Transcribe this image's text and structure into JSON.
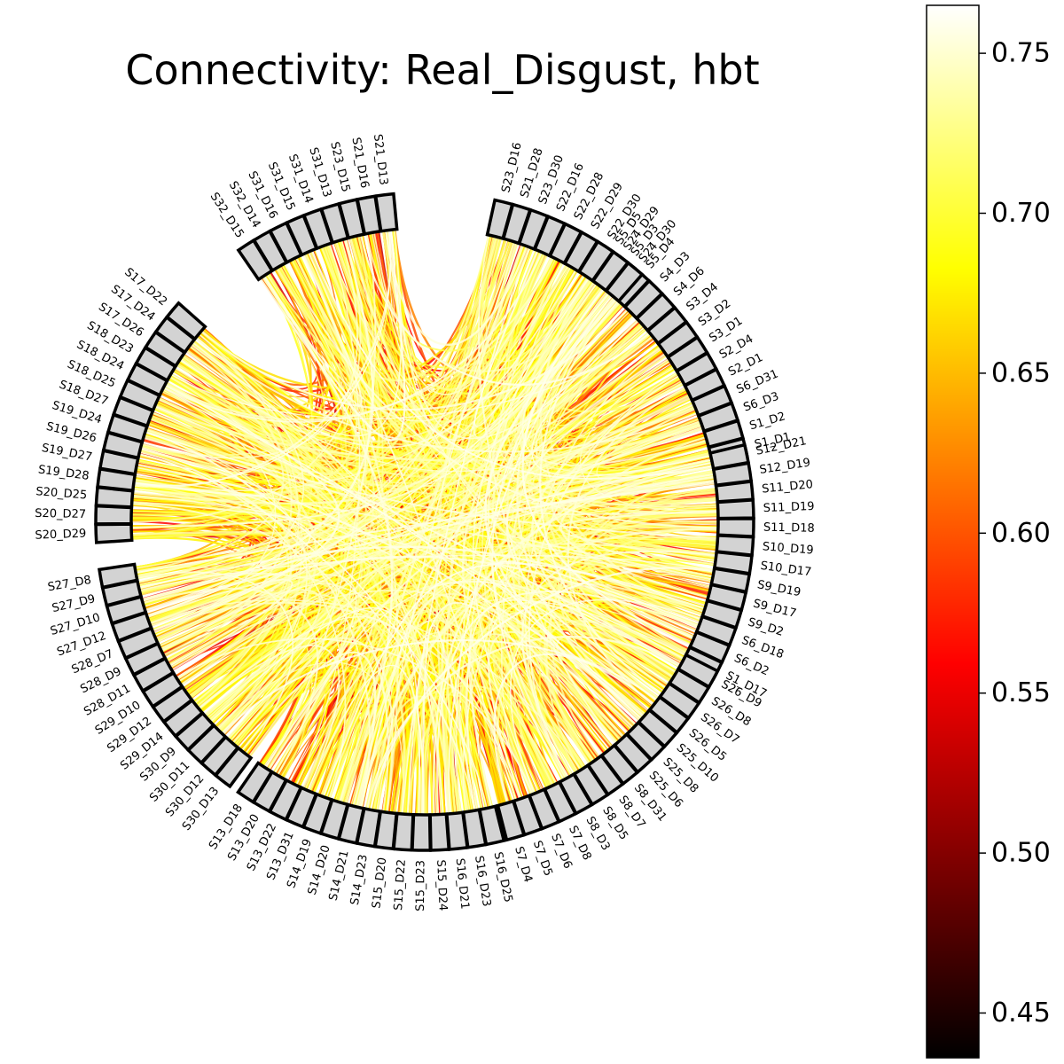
{
  "title": "Connectivity: Real_Disgust, hbt",
  "groups": [
    {
      "name": "g1",
      "nodes": [
        "S1_D1",
        "S1_D2",
        "S6_D3",
        "S6_D31",
        "S2_D1",
        "S2_D4",
        "S3_D1",
        "S3_D2",
        "S3_D4",
        "S4_D6",
        "S4_D3",
        "S5_D4",
        "S5_D3",
        "S5_D5"
      ]
    },
    {
      "name": "g2",
      "nodes": [
        "S1_D17",
        "S6_D2",
        "S6_D18",
        "S9_D2",
        "S9_D17",
        "S9_D19",
        "S10_D17",
        "S10_D19",
        "S11_D18",
        "S11_D19",
        "S11_D20",
        "S12_D19",
        "S12_D21"
      ]
    },
    {
      "name": "g3",
      "nodes": [
        "S7_D4",
        "S7_D5",
        "S7_D6",
        "S7_D8",
        "S8_D3",
        "S8_D5",
        "S8_D7",
        "S8_D31",
        "S25_D6",
        "S25_D8",
        "S25_D10",
        "S26_D5",
        "S26_D7",
        "S26_D8",
        "S26_D9"
      ]
    },
    {
      "name": "g4",
      "nodes": [
        "S13_D18",
        "S13_D20",
        "S13_D22",
        "S13_D31",
        "S14_D19",
        "S14_D20",
        "S14_D21",
        "S14_D23",
        "S15_D20",
        "S15_D22",
        "S15_D23",
        "S15_D24",
        "S16_D21",
        "S16_D23",
        "S16_D25"
      ]
    },
    {
      "name": "g5",
      "nodes": [
        "S27_D8",
        "S27_D9",
        "S27_D10",
        "S27_D12",
        "S28_D7",
        "S28_D9",
        "S28_D11",
        "S29_D10",
        "S29_D12",
        "S29_D14",
        "S30_D9",
        "S30_D11",
        "S30_D12",
        "S30_D13"
      ]
    },
    {
      "name": "g6",
      "nodes": [
        "S17_D22",
        "S17_D24",
        "S17_D26",
        "S18_D23",
        "S18_D24",
        "S18_D25",
        "S18_D27",
        "S19_D24",
        "S19_D26",
        "S19_D27",
        "S19_D28",
        "S20_D25",
        "S20_D27",
        "S20_D29"
      ]
    },
    {
      "name": "g7",
      "nodes": [
        "S21_D13",
        "S21_D16",
        "S23_D15",
        "S31_D13",
        "S31_D14",
        "S31_D15",
        "S31_D16",
        "S32_D14",
        "S32_D15"
      ]
    },
    {
      "name": "g8",
      "nodes": [
        "S24_D30",
        "S24_D29",
        "S22_D30",
        "S22_D29",
        "S22_D28",
        "S22_D16",
        "S23_D30",
        "S21_D28",
        "S23_D16"
      ]
    }
  ],
  "colorbar": {
    "min": 0.436,
    "max": 0.765,
    "ticks": [
      {
        "value": 0.45,
        "label": "0.45"
      },
      {
        "value": 0.5,
        "label": "0.50"
      },
      {
        "value": 0.55,
        "label": "0.55"
      },
      {
        "value": 0.6,
        "label": "0.60"
      },
      {
        "value": 0.65,
        "label": "0.65"
      },
      {
        "value": 0.7,
        "label": "0.70"
      },
      {
        "value": 0.75,
        "label": "0.75"
      }
    ],
    "colormap": "hot",
    "colormap_stops": [
      "#000000",
      "#ff0000",
      "#ffff00",
      "#ffffff"
    ]
  },
  "node_fill": "#d3d3d3",
  "connection_strength_range": [
    0.53,
    0.76
  ]
}
